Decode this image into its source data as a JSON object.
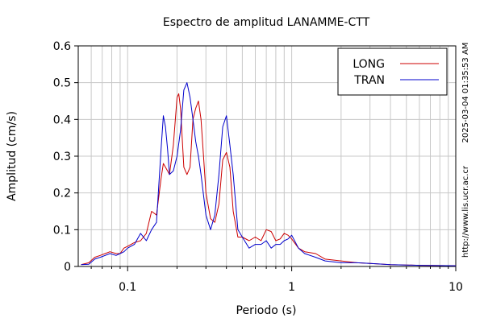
{
  "chart_data": {
    "type": "line",
    "title": "Espectro de amplitud LANAMME-CTT",
    "xlabel": "Periodo (s)",
    "ylabel": "Amplitud (cm/s)",
    "x_scale": "log",
    "xlim": [
      0.05,
      10
    ],
    "ylim": [
      0,
      0.6
    ],
    "x_ticks": [
      0.1,
      1,
      10
    ],
    "x_tick_labels": [
      "0.1",
      "1",
      "10"
    ],
    "y_ticks": [
      0,
      0.1,
      0.2,
      0.3,
      0.4,
      0.5,
      0.6
    ],
    "y_tick_labels": [
      "0",
      "0.1",
      "0.2",
      "0.3",
      "0.4",
      "0.5",
      "0.6"
    ],
    "grid": true,
    "legend_position": "top-right",
    "side_annotations": [
      "2025-03-04 01:35:53 AM",
      "http://www.lis.ucr.ac.cr"
    ],
    "series": [
      {
        "name": "LONG",
        "color": "#cc0000",
        "points": [
          [
            0.052,
            0.005
          ],
          [
            0.058,
            0.01
          ],
          [
            0.063,
            0.025
          ],
          [
            0.068,
            0.03
          ],
          [
            0.073,
            0.035
          ],
          [
            0.078,
            0.04
          ],
          [
            0.085,
            0.035
          ],
          [
            0.09,
            0.035
          ],
          [
            0.095,
            0.05
          ],
          [
            0.1,
            0.055
          ],
          [
            0.11,
            0.065
          ],
          [
            0.12,
            0.07
          ],
          [
            0.13,
            0.09
          ],
          [
            0.14,
            0.15
          ],
          [
            0.15,
            0.14
          ],
          [
            0.16,
            0.24
          ],
          [
            0.165,
            0.28
          ],
          [
            0.175,
            0.26
          ],
          [
            0.18,
            0.25
          ],
          [
            0.19,
            0.33
          ],
          [
            0.2,
            0.46
          ],
          [
            0.205,
            0.47
          ],
          [
            0.21,
            0.43
          ],
          [
            0.22,
            0.27
          ],
          [
            0.23,
            0.25
          ],
          [
            0.24,
            0.27
          ],
          [
            0.25,
            0.4
          ],
          [
            0.26,
            0.43
          ],
          [
            0.27,
            0.45
          ],
          [
            0.28,
            0.4
          ],
          [
            0.29,
            0.3
          ],
          [
            0.3,
            0.2
          ],
          [
            0.32,
            0.13
          ],
          [
            0.34,
            0.12
          ],
          [
            0.36,
            0.17
          ],
          [
            0.38,
            0.29
          ],
          [
            0.4,
            0.31
          ],
          [
            0.42,
            0.27
          ],
          [
            0.44,
            0.15
          ],
          [
            0.47,
            0.08
          ],
          [
            0.5,
            0.08
          ],
          [
            0.55,
            0.07
          ],
          [
            0.6,
            0.08
          ],
          [
            0.65,
            0.07
          ],
          [
            0.7,
            0.1
          ],
          [
            0.75,
            0.095
          ],
          [
            0.8,
            0.07
          ],
          [
            0.85,
            0.075
          ],
          [
            0.9,
            0.09
          ],
          [
            0.95,
            0.085
          ],
          [
            1.0,
            0.075
          ],
          [
            1.1,
            0.05
          ],
          [
            1.2,
            0.04
          ],
          [
            1.4,
            0.035
          ],
          [
            1.6,
            0.02
          ],
          [
            2.0,
            0.015
          ],
          [
            2.5,
            0.01
          ],
          [
            3.0,
            0.008
          ],
          [
            4.0,
            0.005
          ],
          [
            6.0,
            0.003
          ],
          [
            10.0,
            0.002
          ]
        ]
      },
      {
        "name": "TRAN",
        "color": "#0000cc",
        "points": [
          [
            0.052,
            0.005
          ],
          [
            0.058,
            0.006
          ],
          [
            0.063,
            0.02
          ],
          [
            0.068,
            0.025
          ],
          [
            0.073,
            0.03
          ],
          [
            0.078,
            0.035
          ],
          [
            0.085,
            0.03
          ],
          [
            0.09,
            0.035
          ],
          [
            0.095,
            0.04
          ],
          [
            0.1,
            0.05
          ],
          [
            0.11,
            0.06
          ],
          [
            0.12,
            0.09
          ],
          [
            0.13,
            0.07
          ],
          [
            0.14,
            0.1
          ],
          [
            0.15,
            0.12
          ],
          [
            0.16,
            0.32
          ],
          [
            0.165,
            0.41
          ],
          [
            0.17,
            0.38
          ],
          [
            0.175,
            0.32
          ],
          [
            0.18,
            0.25
          ],
          [
            0.19,
            0.26
          ],
          [
            0.2,
            0.3
          ],
          [
            0.21,
            0.37
          ],
          [
            0.22,
            0.48
          ],
          [
            0.23,
            0.5
          ],
          [
            0.24,
            0.46
          ],
          [
            0.25,
            0.4
          ],
          [
            0.26,
            0.34
          ],
          [
            0.27,
            0.3
          ],
          [
            0.28,
            0.25
          ],
          [
            0.3,
            0.14
          ],
          [
            0.32,
            0.1
          ],
          [
            0.34,
            0.14
          ],
          [
            0.36,
            0.25
          ],
          [
            0.38,
            0.38
          ],
          [
            0.4,
            0.41
          ],
          [
            0.42,
            0.33
          ],
          [
            0.44,
            0.25
          ],
          [
            0.47,
            0.1
          ],
          [
            0.5,
            0.08
          ],
          [
            0.55,
            0.05
          ],
          [
            0.6,
            0.06
          ],
          [
            0.65,
            0.06
          ],
          [
            0.7,
            0.07
          ],
          [
            0.75,
            0.05
          ],
          [
            0.8,
            0.06
          ],
          [
            0.85,
            0.06
          ],
          [
            0.9,
            0.07
          ],
          [
            0.95,
            0.075
          ],
          [
            1.0,
            0.085
          ],
          [
            1.1,
            0.05
          ],
          [
            1.2,
            0.035
          ],
          [
            1.4,
            0.025
          ],
          [
            1.6,
            0.015
          ],
          [
            2.0,
            0.01
          ],
          [
            2.5,
            0.01
          ],
          [
            3.0,
            0.008
          ],
          [
            4.0,
            0.005
          ],
          [
            6.0,
            0.003
          ],
          [
            10.0,
            0.002
          ]
        ]
      }
    ]
  }
}
